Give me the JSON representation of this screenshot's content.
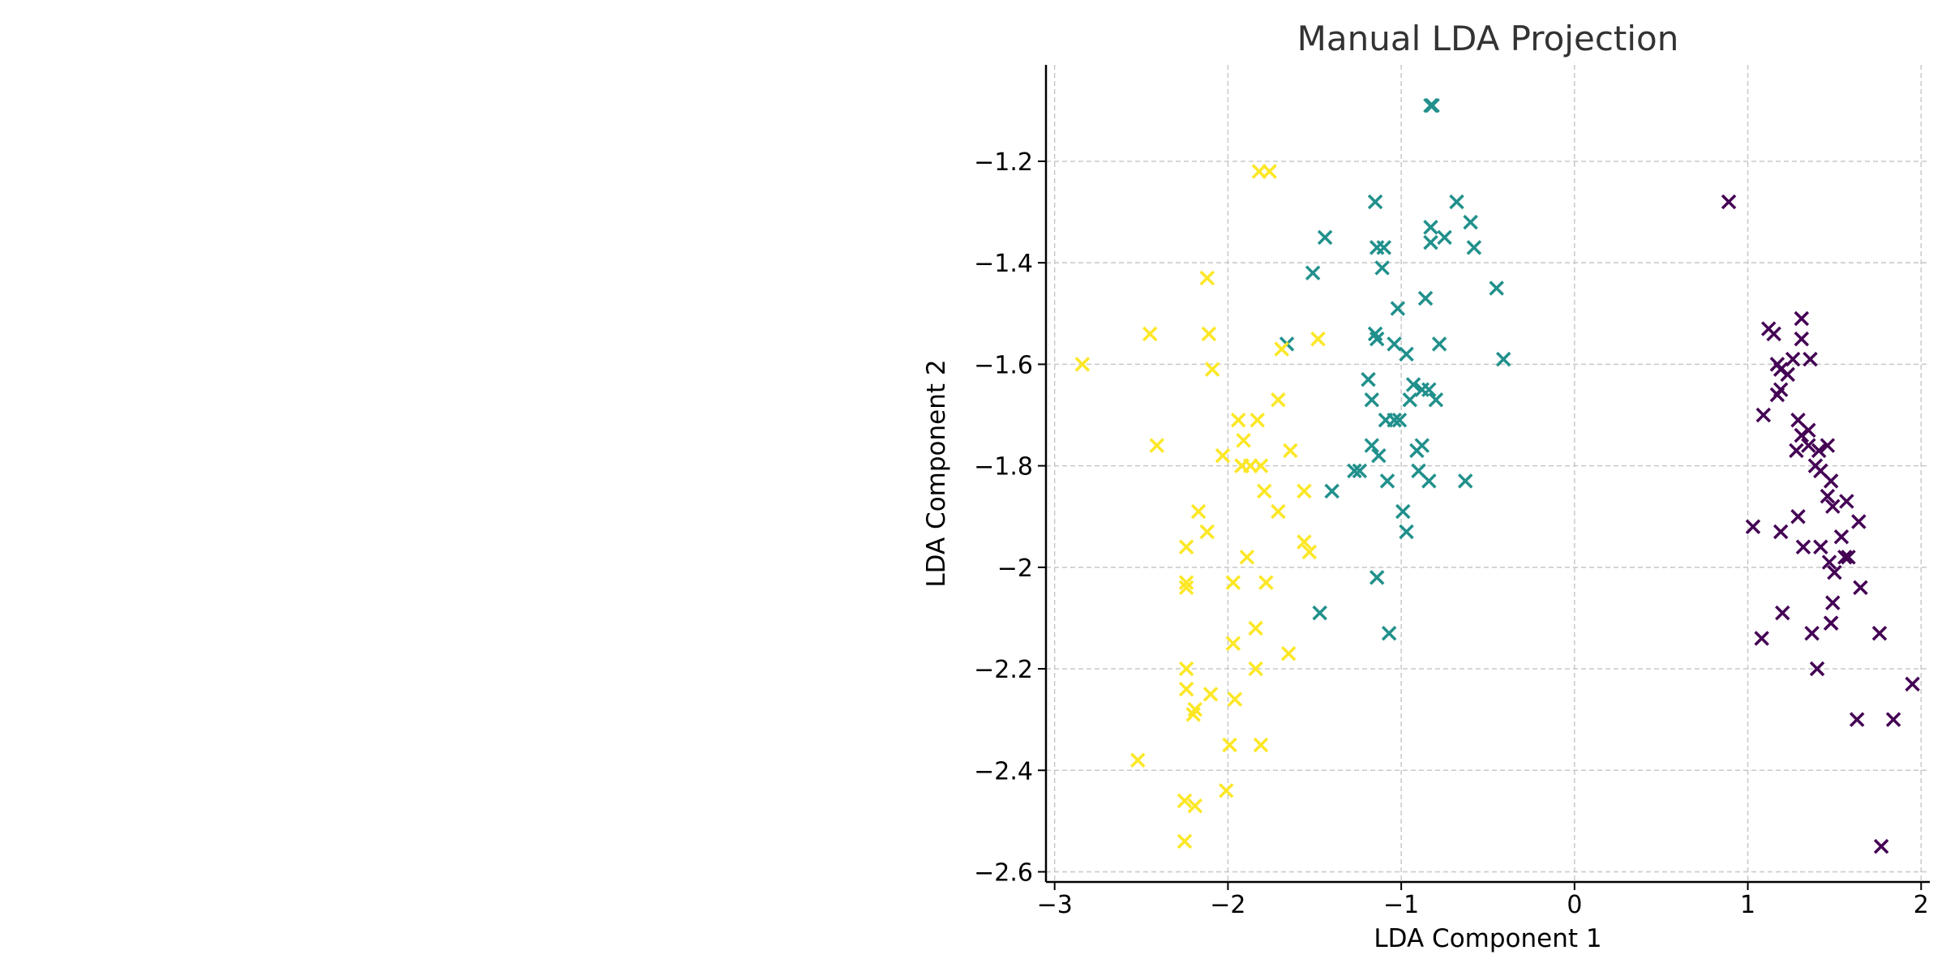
{
  "chart_data": {
    "type": "scatter",
    "title": "Manual LDA Projection",
    "xlabel": "LDA Component 1",
    "ylabel": "LDA Component 2",
    "xlim": [
      -3.05,
      2.05
    ],
    "ylim": [
      -2.62,
      -1.01
    ],
    "xticks": [
      -3,
      -2,
      -1,
      0,
      1,
      2
    ],
    "yticks": [
      -2.6,
      -2.4,
      -2.2,
      -2.0,
      -1.8,
      -1.6,
      -1.4,
      -1.2
    ],
    "grid": true,
    "marker": "x",
    "series": [
      {
        "color": "#440154",
        "points": [
          [
            0.89,
            -1.28
          ],
          [
            1.12,
            -1.53
          ],
          [
            1.15,
            -1.54
          ],
          [
            1.31,
            -1.51
          ],
          [
            1.31,
            -1.55
          ],
          [
            1.09,
            -1.7
          ],
          [
            1.17,
            -1.6
          ],
          [
            1.19,
            -1.61
          ],
          [
            1.23,
            -1.62
          ],
          [
            1.26,
            -1.59
          ],
          [
            1.17,
            -1.66
          ],
          [
            1.19,
            -1.65
          ],
          [
            1.36,
            -1.59
          ],
          [
            1.29,
            -1.71
          ],
          [
            1.31,
            -1.74
          ],
          [
            1.35,
            -1.73
          ],
          [
            1.35,
            -1.76
          ],
          [
            1.28,
            -1.77
          ],
          [
            1.39,
            -1.8
          ],
          [
            1.46,
            -1.76
          ],
          [
            1.41,
            -1.77
          ],
          [
            1.42,
            -1.81
          ],
          [
            1.48,
            -1.83
          ],
          [
            1.03,
            -1.92
          ],
          [
            1.19,
            -1.93
          ],
          [
            1.29,
            -1.9
          ],
          [
            1.32,
            -1.96
          ],
          [
            1.46,
            -1.86
          ],
          [
            1.49,
            -1.88
          ],
          [
            1.57,
            -1.87
          ],
          [
            1.64,
            -1.91
          ],
          [
            1.42,
            -1.96
          ],
          [
            1.47,
            -1.99
          ],
          [
            1.5,
            -2.01
          ],
          [
            1.54,
            -1.94
          ],
          [
            1.56,
            -1.98
          ],
          [
            1.58,
            -1.98
          ],
          [
            1.49,
            -2.07
          ],
          [
            1.65,
            -2.04
          ],
          [
            1.08,
            -2.14
          ],
          [
            1.2,
            -2.09
          ],
          [
            1.37,
            -2.13
          ],
          [
            1.48,
            -2.11
          ],
          [
            1.4,
            -2.2
          ],
          [
            1.76,
            -2.13
          ],
          [
            1.95,
            -2.23
          ],
          [
            1.63,
            -2.3
          ],
          [
            1.84,
            -2.3
          ],
          [
            1.77,
            -2.55
          ],
          [
            1.48,
            -2.11
          ]
        ]
      },
      {
        "color": "#21908c",
        "points": [
          [
            -0.83,
            -1.09
          ],
          [
            -0.82,
            -1.09
          ],
          [
            -1.15,
            -1.28
          ],
          [
            -0.68,
            -1.28
          ],
          [
            -0.83,
            -1.33
          ],
          [
            -0.6,
            -1.32
          ],
          [
            -0.75,
            -1.35
          ],
          [
            -1.44,
            -1.35
          ],
          [
            -0.83,
            -1.36
          ],
          [
            -0.58,
            -1.37
          ],
          [
            -1.14,
            -1.37
          ],
          [
            -1.1,
            -1.37
          ],
          [
            -1.11,
            -1.41
          ],
          [
            -1.51,
            -1.42
          ],
          [
            -0.45,
            -1.45
          ],
          [
            -1.02,
            -1.49
          ],
          [
            -0.86,
            -1.47
          ],
          [
            -1.15,
            -1.54
          ],
          [
            -1.14,
            -1.55
          ],
          [
            -1.04,
            -1.56
          ],
          [
            -0.78,
            -1.56
          ],
          [
            -1.66,
            -1.56
          ],
          [
            -0.41,
            -1.59
          ],
          [
            -0.97,
            -1.58
          ],
          [
            -1.19,
            -1.63
          ],
          [
            -0.93,
            -1.64
          ],
          [
            -0.88,
            -1.65
          ],
          [
            -0.84,
            -1.65
          ],
          [
            -1.17,
            -1.67
          ],
          [
            -0.95,
            -1.67
          ],
          [
            -0.8,
            -1.67
          ],
          [
            -1.09,
            -1.71
          ],
          [
            -1.04,
            -1.71
          ],
          [
            -1.17,
            -1.76
          ],
          [
            -1.13,
            -1.78
          ],
          [
            -0.88,
            -1.76
          ],
          [
            -0.91,
            -1.77
          ],
          [
            -1.24,
            -1.81
          ],
          [
            -1.27,
            -1.81
          ],
          [
            -0.9,
            -1.81
          ],
          [
            -1.08,
            -1.83
          ],
          [
            -0.84,
            -1.83
          ],
          [
            -0.63,
            -1.83
          ],
          [
            -1.4,
            -1.85
          ],
          [
            -0.99,
            -1.89
          ],
          [
            -0.97,
            -1.93
          ],
          [
            -1.14,
            -2.02
          ],
          [
            -1.47,
            -2.09
          ],
          [
            -1.07,
            -2.13
          ],
          [
            -1.01,
            -1.71
          ]
        ]
      },
      {
        "color": "#fde725",
        "points": [
          [
            -1.82,
            -1.22
          ],
          [
            -1.76,
            -1.22
          ],
          [
            -2.12,
            -1.43
          ],
          [
            -2.45,
            -1.54
          ],
          [
            -2.11,
            -1.54
          ],
          [
            -1.48,
            -1.55
          ],
          [
            -1.69,
            -1.57
          ],
          [
            -2.09,
            -1.61
          ],
          [
            -2.84,
            -1.6
          ],
          [
            -1.71,
            -1.67
          ],
          [
            -1.83,
            -1.71
          ],
          [
            -1.94,
            -1.71
          ],
          [
            -1.91,
            -1.75
          ],
          [
            -2.41,
            -1.76
          ],
          [
            -1.64,
            -1.77
          ],
          [
            -2.03,
            -1.78
          ],
          [
            -1.92,
            -1.8
          ],
          [
            -1.87,
            -1.8
          ],
          [
            -1.81,
            -1.8
          ],
          [
            -1.79,
            -1.85
          ],
          [
            -1.56,
            -1.85
          ],
          [
            -1.71,
            -1.89
          ],
          [
            -2.17,
            -1.89
          ],
          [
            -2.12,
            -1.93
          ],
          [
            -1.56,
            -1.95
          ],
          [
            -1.53,
            -1.97
          ],
          [
            -2.24,
            -1.96
          ],
          [
            -1.89,
            -1.98
          ],
          [
            -2.24,
            -2.03
          ],
          [
            -2.24,
            -2.04
          ],
          [
            -1.97,
            -2.03
          ],
          [
            -1.78,
            -2.03
          ],
          [
            -1.84,
            -2.12
          ],
          [
            -1.97,
            -2.15
          ],
          [
            -1.65,
            -2.17
          ],
          [
            -2.24,
            -2.2
          ],
          [
            -1.84,
            -2.2
          ],
          [
            -2.24,
            -2.24
          ],
          [
            -2.1,
            -2.25
          ],
          [
            -2.19,
            -2.28
          ],
          [
            -2.2,
            -2.29
          ],
          [
            -1.96,
            -2.26
          ],
          [
            -1.99,
            -2.35
          ],
          [
            -1.81,
            -2.35
          ],
          [
            -2.52,
            -2.38
          ],
          [
            -2.01,
            -2.44
          ],
          [
            -2.25,
            -2.46
          ],
          [
            -2.19,
            -2.47
          ],
          [
            -2.25,
            -2.54
          ],
          [
            -1.92,
            -1.8
          ]
        ]
      }
    ]
  }
}
